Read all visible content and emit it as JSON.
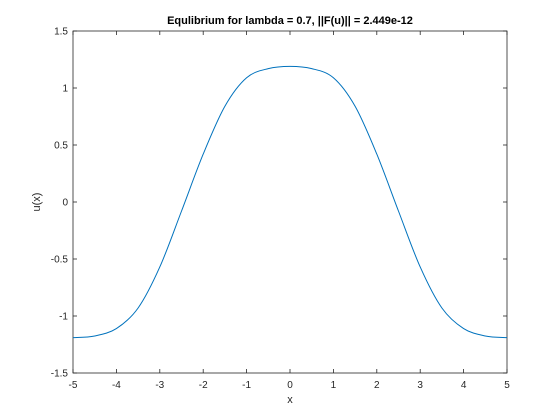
{
  "chart_data": {
    "type": "line",
    "title": "Equlibrium for lambda = 0.7, ||F(u)|| = 2.449e-12",
    "xlabel": "x",
    "ylabel": "u(x)",
    "xlim": [
      -5,
      5
    ],
    "ylim": [
      -1.5,
      1.5
    ],
    "xticks": [
      -5,
      -4,
      -3,
      -2,
      -1,
      0,
      1,
      2,
      3,
      4,
      5
    ],
    "xtick_labels": [
      "-5",
      "-4",
      "-3",
      "-2",
      "-1",
      "0",
      "1",
      "2",
      "3",
      "4",
      "5"
    ],
    "yticks": [
      -1.5,
      -1,
      -0.5,
      0,
      0.5,
      1,
      1.5
    ],
    "ytick_labels": [
      "-1.5",
      "-1",
      "-0.5",
      "0",
      "0.5",
      "1",
      "1.5"
    ],
    "grid": false,
    "series": [
      {
        "color": "#0072bd",
        "x": [
          -5,
          -4.5,
          -4,
          -3.5,
          -3,
          -2.5,
          -2,
          -1.5,
          -1,
          -0.5,
          0,
          0.5,
          1,
          1.5,
          2,
          2.5,
          3,
          3.5,
          4,
          4.5,
          5
        ],
        "y": [
          -1.19,
          -1.175,
          -1.11,
          -0.93,
          -0.57,
          -0.08,
          0.42,
          0.84,
          1.09,
          1.17,
          1.19,
          1.17,
          1.09,
          0.84,
          0.42,
          -0.08,
          -0.57,
          -0.93,
          -1.11,
          -1.175,
          -1.19
        ]
      }
    ]
  }
}
